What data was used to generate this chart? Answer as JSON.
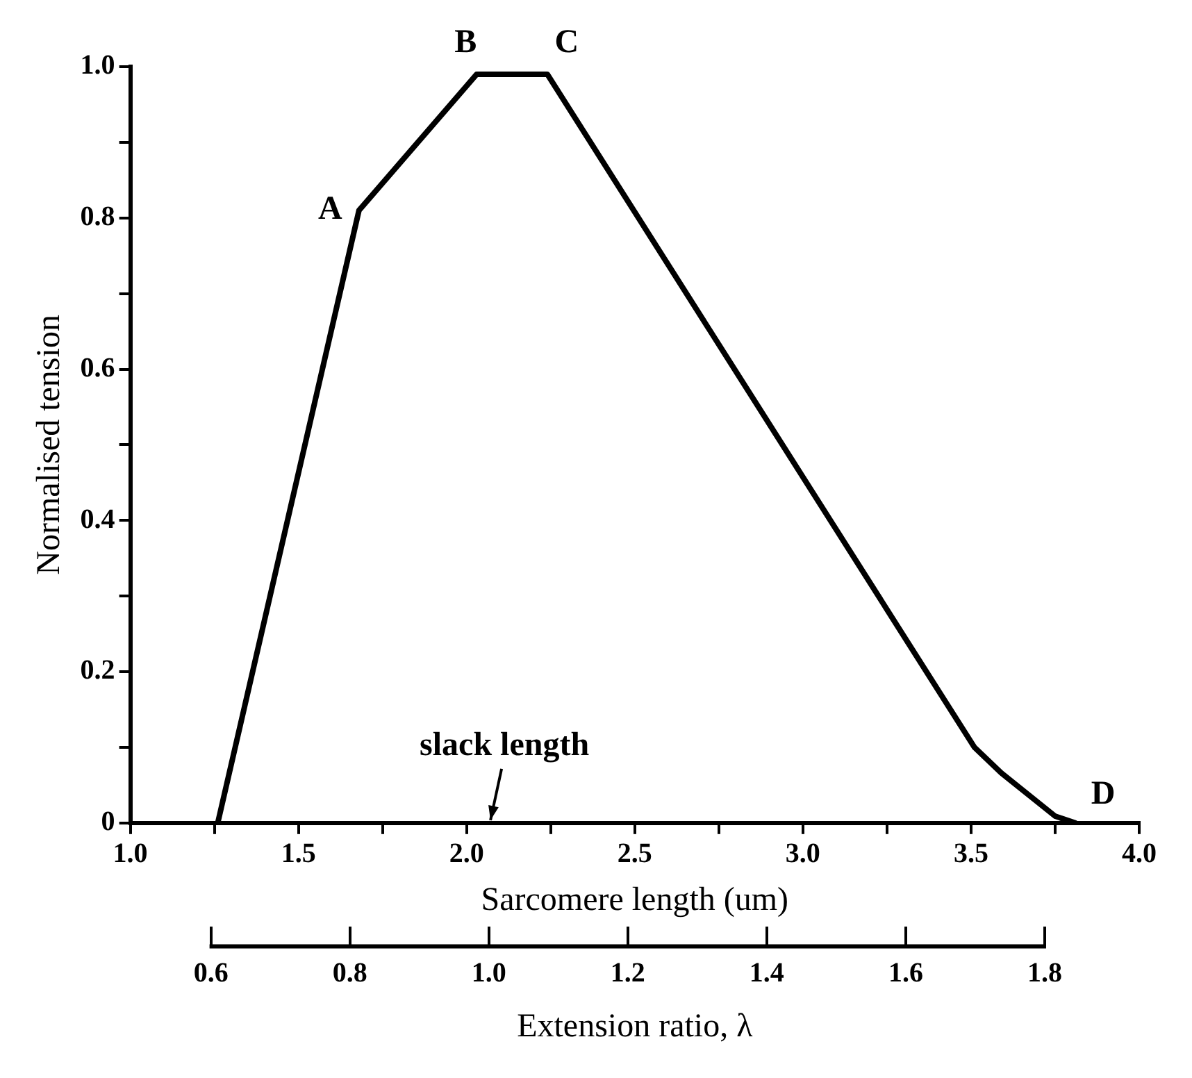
{
  "chart_data": {
    "type": "line",
    "xlabel": "Sarcomere length (um)",
    "ylabel": "Normalised tension",
    "x2label": "Extension ratio, λ",
    "x": [
      1.26,
      1.68,
      2.03,
      2.24,
      3.51,
      3.59,
      3.75,
      3.81
    ],
    "series": [
      {
        "color": "#000000",
        "values": [
          0,
          0.81,
          0.99,
          0.99,
          0.1,
          0.066,
          0.009,
          0
        ]
      }
    ],
    "xlim": [
      1.0,
      4.0
    ],
    "xticks": [
      {
        "value": 1,
        "label": "1.0"
      },
      {
        "value": 1.25,
        "label": null
      },
      1.5,
      {
        "value": 1.75,
        "label": null
      },
      {
        "value": 2,
        "label": "2.0"
      },
      {
        "value": 2.25,
        "label": null
      },
      2.5,
      {
        "value": 2.75,
        "label": null
      },
      {
        "value": 3,
        "label": "3.0"
      },
      {
        "value": 3.25,
        "label": null
      },
      3.5,
      {
        "value": 3.75,
        "label": null
      },
      {
        "value": 4,
        "label": "4.0"
      }
    ],
    "ylim": [
      0,
      1.0
    ],
    "yticks": [
      0,
      {
        "value": 0.1,
        "label": null
      },
      0.2,
      {
        "value": 0.3,
        "label": null
      },
      0.4,
      {
        "value": 0.5,
        "label": null
      },
      0.6,
      {
        "value": 0.7,
        "label": null
      },
      0.8,
      {
        "value": 0.9,
        "label": null
      },
      {
        "value": 1,
        "label": "1.0"
      }
    ],
    "x2lim": [
      0.484,
      1.936
    ],
    "x2ticks": [
      0.6,
      0.8,
      {
        "value": 1,
        "label": "1.0"
      },
      1.2,
      1.4,
      1.6,
      1.8
    ],
    "annotations": [
      {
        "text": "A",
        "x": 1.68,
        "y": 0.81
      },
      {
        "text": "B",
        "x": 2.03,
        "y": 0.99
      },
      {
        "text": "C",
        "x": 2.24,
        "y": 0.99
      },
      {
        "text": "D",
        "x": 3.81,
        "y": 0
      },
      "slack length"
    ],
    "grid": false,
    "legend": false,
    "marker": "none",
    "line_style": "solid"
  }
}
